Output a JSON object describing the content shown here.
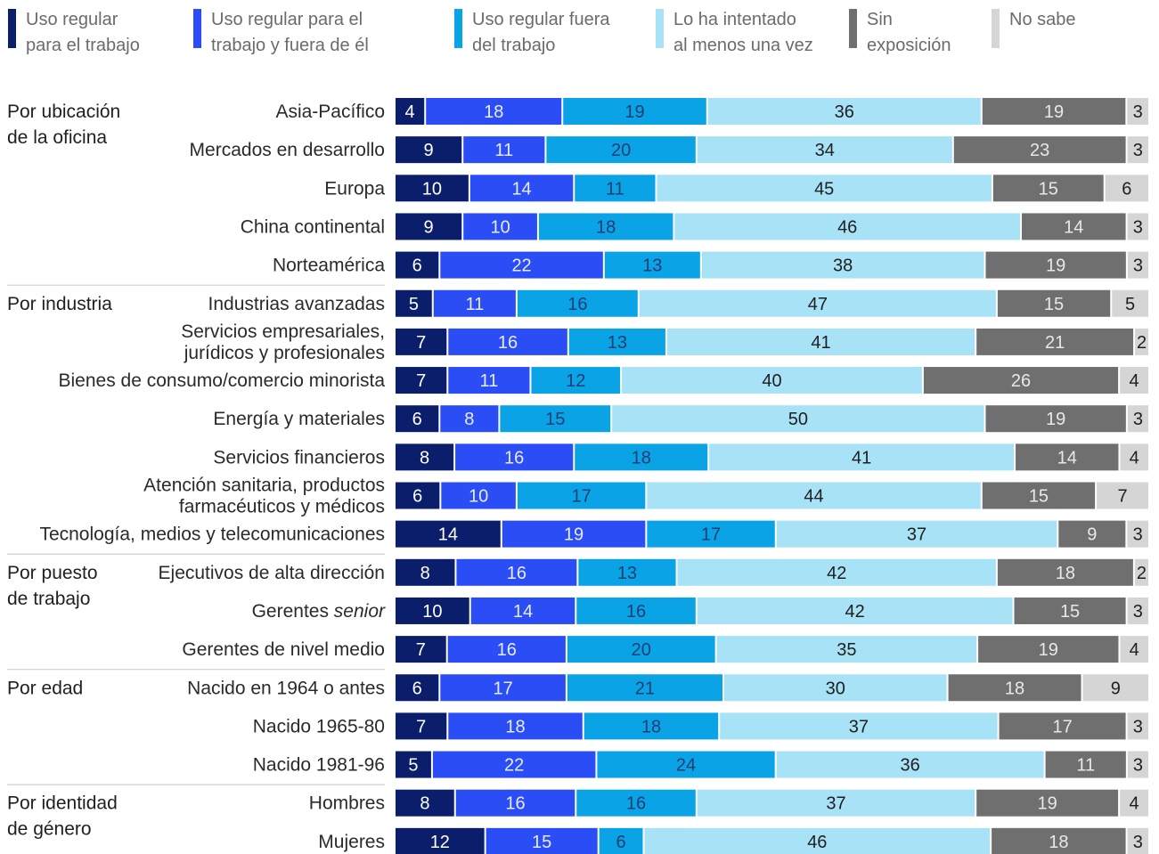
{
  "legend": [
    {
      "label": "Uso regular\npara el trabajo",
      "color": "#0b1e6b"
    },
    {
      "label": "Uso regular para el\ntrabajo y fuera de él",
      "color": "#2b4df5"
    },
    {
      "label": "Uso regular fuera\ndel trabajo",
      "color": "#0aa3e6"
    },
    {
      "label": "Lo ha intentado\nal menos una vez",
      "color": "#a8e2f7"
    },
    {
      "label": "Sin\nexposición",
      "color": "#6f6f6f"
    },
    {
      "label": "No sabe",
      "color": "#d5d5d5"
    }
  ],
  "chart_data": {
    "type": "bar",
    "orientation": "horizontal",
    "stacked": true,
    "unit": "%",
    "series_names": [
      "Uso regular para el trabajo",
      "Uso regular para el trabajo y fuera de él",
      "Uso regular fuera del trabajo",
      "Lo ha intentado al menos una vez",
      "Sin exposición",
      "No sabe"
    ],
    "groups": [
      {
        "label": "Por ubicación de la oficina",
        "rows": [
          {
            "label": "Asia-Pacífico",
            "values": [
              4,
              18,
              19,
              36,
              19,
              3
            ]
          },
          {
            "label": "Mercados en desarrollo",
            "values": [
              9,
              11,
              20,
              34,
              23,
              3
            ]
          },
          {
            "label": "Europa",
            "values": [
              10,
              14,
              11,
              45,
              15,
              6
            ]
          },
          {
            "label": "China continental",
            "values": [
              9,
              10,
              18,
              46,
              14,
              3
            ]
          },
          {
            "label": "Norteamérica",
            "values": [
              6,
              22,
              13,
              38,
              19,
              3
            ]
          }
        ]
      },
      {
        "label": "Por industria",
        "rows": [
          {
            "label": "Industrias avanzadas",
            "values": [
              5,
              11,
              16,
              47,
              15,
              5
            ]
          },
          {
            "label": "Servicios empresariales,\njurídicos y profesionales",
            "values": [
              7,
              16,
              13,
              41,
              21,
              2
            ]
          },
          {
            "label": "Bienes de consumo/comercio minorista",
            "values": [
              7,
              11,
              12,
              40,
              26,
              4
            ]
          },
          {
            "label": "Energía y materiales",
            "values": [
              6,
              8,
              15,
              50,
              19,
              3
            ]
          },
          {
            "label": "Servicios financieros",
            "values": [
              8,
              16,
              18,
              41,
              14,
              4
            ]
          },
          {
            "label": "Atención sanitaria, productos\nfarmacéuticos y médicos",
            "values": [
              6,
              10,
              17,
              44,
              15,
              7
            ]
          },
          {
            "label": "Tecnología, medios y telecomunicaciones",
            "values": [
              14,
              19,
              17,
              37,
              9,
              3
            ]
          }
        ]
      },
      {
        "label": "Por puesto de trabajo",
        "rows": [
          {
            "label": "Ejecutivos de alta dirección",
            "values": [
              8,
              16,
              13,
              42,
              18,
              2
            ]
          },
          {
            "label": "Gerentes senior",
            "label_plain": "Gerentes ",
            "label_italic": "senior",
            "values": [
              10,
              14,
              16,
              42,
              15,
              3
            ]
          },
          {
            "label": "Gerentes de nivel medio",
            "values": [
              7,
              16,
              20,
              35,
              19,
              4
            ]
          }
        ]
      },
      {
        "label": "Por edad",
        "rows": [
          {
            "label": "Nacido en 1964 o antes",
            "values": [
              6,
              17,
              21,
              30,
              18,
              9
            ]
          },
          {
            "label": "Nacido 1965-80",
            "values": [
              7,
              18,
              18,
              37,
              17,
              3
            ]
          },
          {
            "label": "Nacido 1981-96",
            "values": [
              5,
              22,
              24,
              36,
              11,
              3
            ]
          }
        ]
      },
      {
        "label": "Por identidad de género",
        "rows": [
          {
            "label": "Hombres",
            "values": [
              8,
              16,
              16,
              37,
              19,
              4
            ]
          },
          {
            "label": "Mujeres",
            "values": [
              12,
              15,
              6,
              46,
              18,
              3
            ]
          }
        ]
      }
    ]
  }
}
